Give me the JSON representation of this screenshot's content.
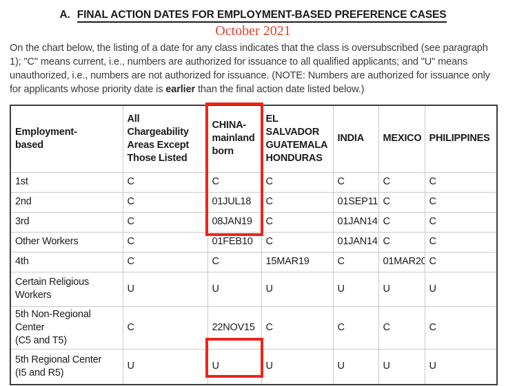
{
  "title": {
    "prefix": "A.",
    "main": "FINAL ACTION DATES FOR EMPLOYMENT-BASED PREFERENCE CASES"
  },
  "subtitle": "October 2021",
  "intro": {
    "before_bold": "On the chart below, the listing of a date for any class indicates that the class is oversubscribed (see paragraph 1); \"C\" means current, i.e., numbers are authorized for issuance to all qualified applicants; and \"U\" means unauthorized, i.e., numbers are not authorized for issuance. (NOTE: Numbers are authorized for issuance only for applicants whose priority date is ",
    "bold": "earlier",
    "after_bold": " than the final action date listed below.)"
  },
  "colors": {
    "highlight_box": "#ee2418",
    "subtitle_red": "#e0402f"
  },
  "table": {
    "columns": [
      "Employment-\nbased",
      "All\nChargeability\nAreas Except\nThose Listed",
      "CHINA-\nmainland\nborn",
      "EL\nSALVADOR\nGUATEMALA\nHONDURAS",
      "INDIA",
      "MEXICO",
      "PHILIPPINES"
    ],
    "rows": [
      {
        "label": "1st",
        "values": [
          "C",
          "C",
          "C",
          "C",
          "C",
          "C"
        ]
      },
      {
        "label": "2nd",
        "values": [
          "C",
          "01JUL18",
          "C",
          "01SEP11",
          "C",
          "C"
        ]
      },
      {
        "label": "3rd",
        "values": [
          "C",
          "08JAN19",
          "C",
          "01JAN14",
          "C",
          "C"
        ]
      },
      {
        "label": "Other Workers",
        "values": [
          "C",
          "01FEB10",
          "C",
          "01JAN14",
          "C",
          "C"
        ]
      },
      {
        "label": "4th",
        "values": [
          "C",
          "C",
          "15MAR19",
          "C",
          "01MAR20",
          "C"
        ]
      },
      {
        "label": "Certain Religious\nWorkers",
        "values": [
          "U",
          "U",
          "U",
          "U",
          "U",
          "U"
        ]
      },
      {
        "label": "5th Non-Regional Center\n(C5 and T5)",
        "values": [
          "C",
          "22NOV15",
          "C",
          "C",
          "C",
          "C"
        ]
      },
      {
        "label": "5th Regional Center\n(I5 and R5)",
        "values": [
          "U",
          "U",
          "U",
          "U",
          "U",
          "U"
        ]
      }
    ]
  }
}
